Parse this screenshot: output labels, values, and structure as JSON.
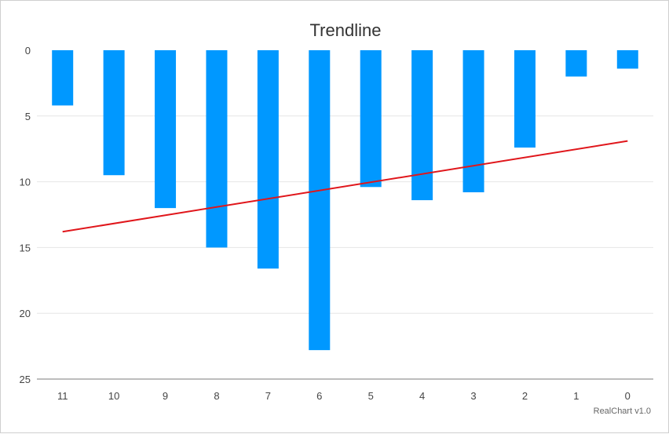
{
  "chart_data": {
    "type": "bar",
    "title": "Trendline",
    "categories": [
      "11",
      "10",
      "9",
      "8",
      "7",
      "6",
      "5",
      "4",
      "3",
      "2",
      "1",
      "0"
    ],
    "values": [
      4.2,
      9.5,
      12.0,
      15.0,
      16.6,
      22.8,
      10.4,
      11.4,
      10.8,
      7.4,
      2.0,
      1.4
    ],
    "y_ticks": [
      "0",
      "5",
      "10",
      "15",
      "20",
      "25"
    ],
    "ylim": [
      0,
      25
    ],
    "y_reversed": true,
    "grid": true,
    "bar_color": "#0098ff",
    "trendline": {
      "color": "#e0161b",
      "start_value": 13.8,
      "end_value": 6.9
    }
  },
  "credit": "RealChart v1.0"
}
